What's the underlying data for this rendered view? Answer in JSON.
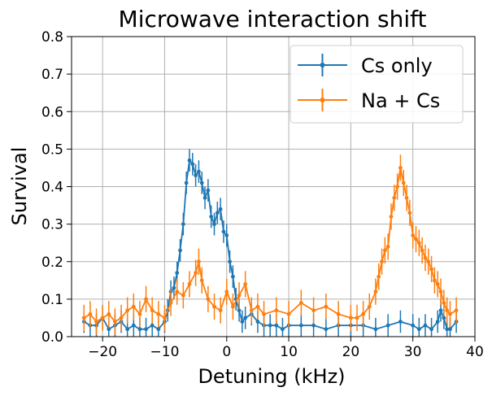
{
  "chart_data": {
    "type": "line",
    "title": "Microwave interaction shift",
    "xlabel": "Detuning (kHz)",
    "ylabel": "Survival",
    "xlim": [
      -25,
      40
    ],
    "ylim": [
      0,
      0.8
    ],
    "xticks": [
      -20,
      -10,
      0,
      10,
      20,
      30,
      40
    ],
    "xtick_labels": [
      "−20",
      "−10",
      "0",
      "10",
      "20",
      "30",
      "40"
    ],
    "yticks": [
      0.0,
      0.1,
      0.2,
      0.3,
      0.4,
      0.5,
      0.6,
      0.7,
      0.8
    ],
    "ytick_labels": [
      "0.0",
      "0.1",
      "0.2",
      "0.3",
      "0.4",
      "0.5",
      "0.6",
      "0.7",
      "0.8"
    ],
    "grid": true,
    "legend_position": "top-right",
    "series": [
      {
        "name": "Cs only",
        "color": "#1f77b4",
        "x": [
          -23,
          -22,
          -21,
          -20,
          -19,
          -18,
          -17,
          -16,
          -15,
          -14,
          -13,
          -12,
          -11,
          -10,
          -9.5,
          -9,
          -8.5,
          -8,
          -7.5,
          -7,
          -6.5,
          -6,
          -5.5,
          -5,
          -4.5,
          -4,
          -3.5,
          -3,
          -2.5,
          -2,
          -1.5,
          -1,
          -0.5,
          0,
          0.5,
          1,
          1.5,
          2,
          2.5,
          3,
          4,
          5,
          6,
          7,
          8,
          9,
          10,
          12,
          14,
          16,
          18,
          20,
          22,
          24,
          26,
          28,
          30,
          31,
          32,
          33,
          34,
          34.5,
          35,
          35.5,
          36,
          37
        ],
        "y": [
          0.04,
          0.03,
          0.03,
          0.05,
          0.02,
          0.03,
          0.04,
          0.02,
          0.03,
          0.02,
          0.02,
          0.03,
          0.02,
          0.04,
          0.07,
          0.12,
          0.13,
          0.17,
          0.23,
          0.3,
          0.41,
          0.47,
          0.46,
          0.43,
          0.44,
          0.41,
          0.37,
          0.39,
          0.32,
          0.3,
          0.33,
          0.34,
          0.28,
          0.27,
          0.2,
          0.16,
          0.1,
          0.07,
          0.04,
          0.05,
          0.06,
          0.04,
          0.03,
          0.03,
          0.03,
          0.02,
          0.03,
          0.03,
          0.03,
          0.02,
          0.03,
          0.03,
          0.03,
          0.02,
          0.03,
          0.04,
          0.03,
          0.02,
          0.03,
          0.02,
          0.04,
          0.07,
          0.05,
          0.02,
          0.02,
          0.04
        ],
        "yerr": 0.03
      },
      {
        "name": "Na + Cs",
        "color": "#ff7f0e",
        "x": [
          -23,
          -22,
          -21,
          -20,
          -19,
          -18,
          -17,
          -16,
          -15,
          -14,
          -13,
          -12,
          -11,
          -10,
          -9,
          -8,
          -7,
          -6,
          -5,
          -4.5,
          -4,
          -3,
          -2,
          -1,
          0,
          1,
          2,
          3,
          4,
          5,
          6,
          8,
          10,
          12,
          14,
          16,
          18,
          20,
          21,
          22,
          23,
          24,
          24.5,
          25,
          25.5,
          26,
          26.5,
          27,
          27.5,
          28,
          28.5,
          29,
          29.5,
          30,
          30.5,
          31,
          31.5,
          32,
          32.5,
          33,
          33.5,
          34,
          34.5,
          35,
          35.5,
          36,
          37
        ],
        "y": [
          0.05,
          0.06,
          0.04,
          0.05,
          0.06,
          0.04,
          0.05,
          0.07,
          0.08,
          0.06,
          0.1,
          0.07,
          0.06,
          0.05,
          0.09,
          0.12,
          0.11,
          0.14,
          0.17,
          0.2,
          0.15,
          0.1,
          0.08,
          0.07,
          0.12,
          0.08,
          0.11,
          0.14,
          0.07,
          0.08,
          0.06,
          0.07,
          0.06,
          0.09,
          0.07,
          0.08,
          0.06,
          0.05,
          0.05,
          0.06,
          0.08,
          0.12,
          0.16,
          0.2,
          0.23,
          0.24,
          0.32,
          0.37,
          0.4,
          0.45,
          0.41,
          0.37,
          0.33,
          0.27,
          0.26,
          0.25,
          0.23,
          0.21,
          0.2,
          0.18,
          0.15,
          0.14,
          0.12,
          0.09,
          0.07,
          0.06,
          0.07
        ],
        "yerr": 0.035
      }
    ]
  }
}
